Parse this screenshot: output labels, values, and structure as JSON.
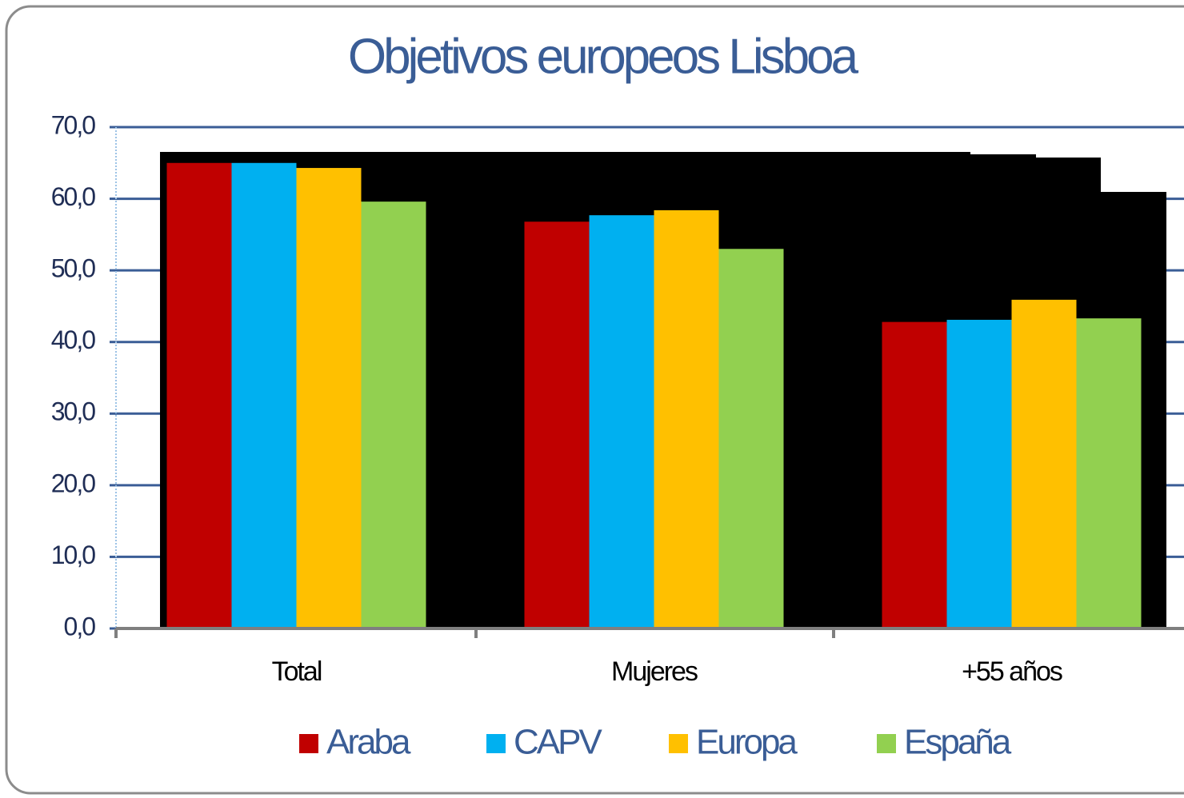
{
  "chart_data": {
    "type": "bar",
    "title": "Objetivos europeos Lisboa",
    "categories": [
      "Total",
      "Mujeres",
      "+55 años"
    ],
    "series": [
      {
        "name": "Araba",
        "color": "#c00000",
        "values": [
          65.0,
          56.8,
          42.8
        ]
      },
      {
        "name": "CAPV",
        "color": "#00b0f0",
        "values": [
          65.0,
          57.7,
          43.1
        ]
      },
      {
        "name": "Europa",
        "color": "#ffc000",
        "values": [
          64.3,
          58.4,
          45.9
        ]
      },
      {
        "name": "España",
        "color": "#92d050",
        "values": [
          59.6,
          53.0,
          43.3
        ]
      }
    ],
    "ylim": [
      0,
      70
    ],
    "yticks": [
      {
        "value": 0,
        "label": "0,0"
      },
      {
        "value": 10,
        "label": "10,0"
      },
      {
        "value": 20,
        "label": "20,0"
      },
      {
        "value": 30,
        "label": "30,0"
      },
      {
        "value": 40,
        "label": "40,0"
      },
      {
        "value": 50,
        "label": "50,0"
      },
      {
        "value": 60,
        "label": "60,0"
      },
      {
        "value": 70,
        "label": "70,0"
      }
    ],
    "grid": true,
    "legend": "bottom"
  }
}
